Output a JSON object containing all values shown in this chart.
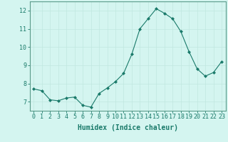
{
  "x": [
    0,
    1,
    2,
    3,
    4,
    5,
    6,
    7,
    8,
    9,
    10,
    11,
    12,
    13,
    14,
    15,
    16,
    17,
    18,
    19,
    20,
    21,
    22,
    23
  ],
  "y": [
    7.7,
    7.6,
    7.1,
    7.05,
    7.2,
    7.25,
    6.8,
    6.7,
    7.45,
    7.75,
    8.1,
    8.55,
    9.6,
    11.0,
    11.55,
    12.1,
    11.85,
    11.55,
    10.85,
    9.75,
    8.8,
    8.4,
    8.6,
    9.2
  ],
  "line_color": "#1a7a6a",
  "marker_color": "#1a7a6a",
  "bg_color": "#d4f5f0",
  "grid_color": "#c0e8e0",
  "xlabel": "Humidex (Indice chaleur)",
  "ylim": [
    6.5,
    12.5
  ],
  "xlim": [
    -0.5,
    23.5
  ],
  "yticks": [
    7,
    8,
    9,
    10,
    11,
    12
  ],
  "xticks": [
    0,
    1,
    2,
    3,
    4,
    5,
    6,
    7,
    8,
    9,
    10,
    11,
    12,
    13,
    14,
    15,
    16,
    17,
    18,
    19,
    20,
    21,
    22,
    23
  ],
  "tick_color": "#1a7a6a",
  "label_fontsize": 7.0,
  "tick_fontsize": 6.0,
  "spine_color": "#5a9a8a"
}
